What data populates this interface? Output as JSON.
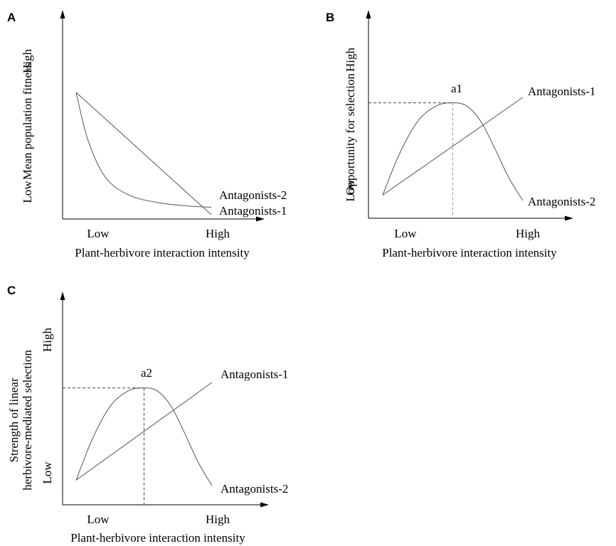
{
  "chart_data": [
    {
      "panel": "A",
      "type": "line",
      "xlabel": "Plant-herbivore interaction intensity",
      "ylabel": "Mean population fitness",
      "x_ticks": [
        "Low",
        "High"
      ],
      "y_ticks": [
        "Low",
        "High"
      ],
      "series": [
        {
          "name": "Antagonists-1",
          "shape": "linear decrease",
          "points": [
            [
              0.0,
              0.88
            ],
            [
              1.0,
              0.05
            ]
          ]
        },
        {
          "name": "Antagonists-2",
          "shape": "convex decrease",
          "points": [
            [
              0.0,
              0.88
            ],
            [
              0.09,
              0.55
            ],
            [
              0.22,
              0.3
            ],
            [
              0.4,
              0.18
            ],
            [
              0.62,
              0.13
            ],
            [
              0.82,
              0.11
            ],
            [
              1.0,
              0.1
            ]
          ]
        }
      ]
    },
    {
      "panel": "B",
      "type": "line",
      "xlabel": "Plant-herbivore interaction intensity",
      "ylabel": "Opportunity for selection",
      "x_ticks": [
        "Low",
        "High"
      ],
      "y_ticks": [
        "Low",
        "High"
      ],
      "annotations": [
        {
          "text": "a1",
          "x": 0.5,
          "y": 0.95
        }
      ],
      "series": [
        {
          "name": "Antagonists-1",
          "shape": "linear increase",
          "points": [
            [
              0.0,
              0.1
            ],
            [
              1.0,
              1.0
            ]
          ]
        },
        {
          "name": "Antagonists-2",
          "shape": "hump",
          "points": [
            [
              0.0,
              0.1
            ],
            [
              0.12,
              0.48
            ],
            [
              0.25,
              0.78
            ],
            [
              0.38,
              0.92
            ],
            [
              0.5,
              0.95
            ],
            [
              0.6,
              0.92
            ],
            [
              0.7,
              0.78
            ],
            [
              0.8,
              0.53
            ],
            [
              0.9,
              0.26
            ],
            [
              1.0,
              0.05
            ]
          ]
        }
      ]
    },
    {
      "panel": "C",
      "type": "line",
      "xlabel": "Plant-herbivore interaction intensity",
      "ylabel": "Strength of linear herbivore-mediated selection",
      "ylabel_lines": [
        "Strength of linear",
        "herbivore-mediated selection"
      ],
      "x_ticks": [
        "Low",
        "High"
      ],
      "y_ticks": [
        "Low",
        "High"
      ],
      "annotations": [
        {
          "text": "a2",
          "x": 0.5,
          "y": 0.95
        }
      ],
      "series": [
        {
          "name": "Antagonists-1",
          "shape": "linear increase",
          "points": [
            [
              0.0,
              0.1
            ],
            [
              1.0,
              1.0
            ]
          ]
        },
        {
          "name": "Antagonists-2",
          "shape": "hump",
          "points": [
            [
              0.0,
              0.1
            ],
            [
              0.12,
              0.48
            ],
            [
              0.25,
              0.78
            ],
            [
              0.38,
              0.92
            ],
            [
              0.5,
              0.95
            ],
            [
              0.6,
              0.92
            ],
            [
              0.7,
              0.78
            ],
            [
              0.8,
              0.53
            ],
            [
              0.9,
              0.26
            ],
            [
              1.0,
              0.05
            ]
          ]
        }
      ]
    }
  ]
}
